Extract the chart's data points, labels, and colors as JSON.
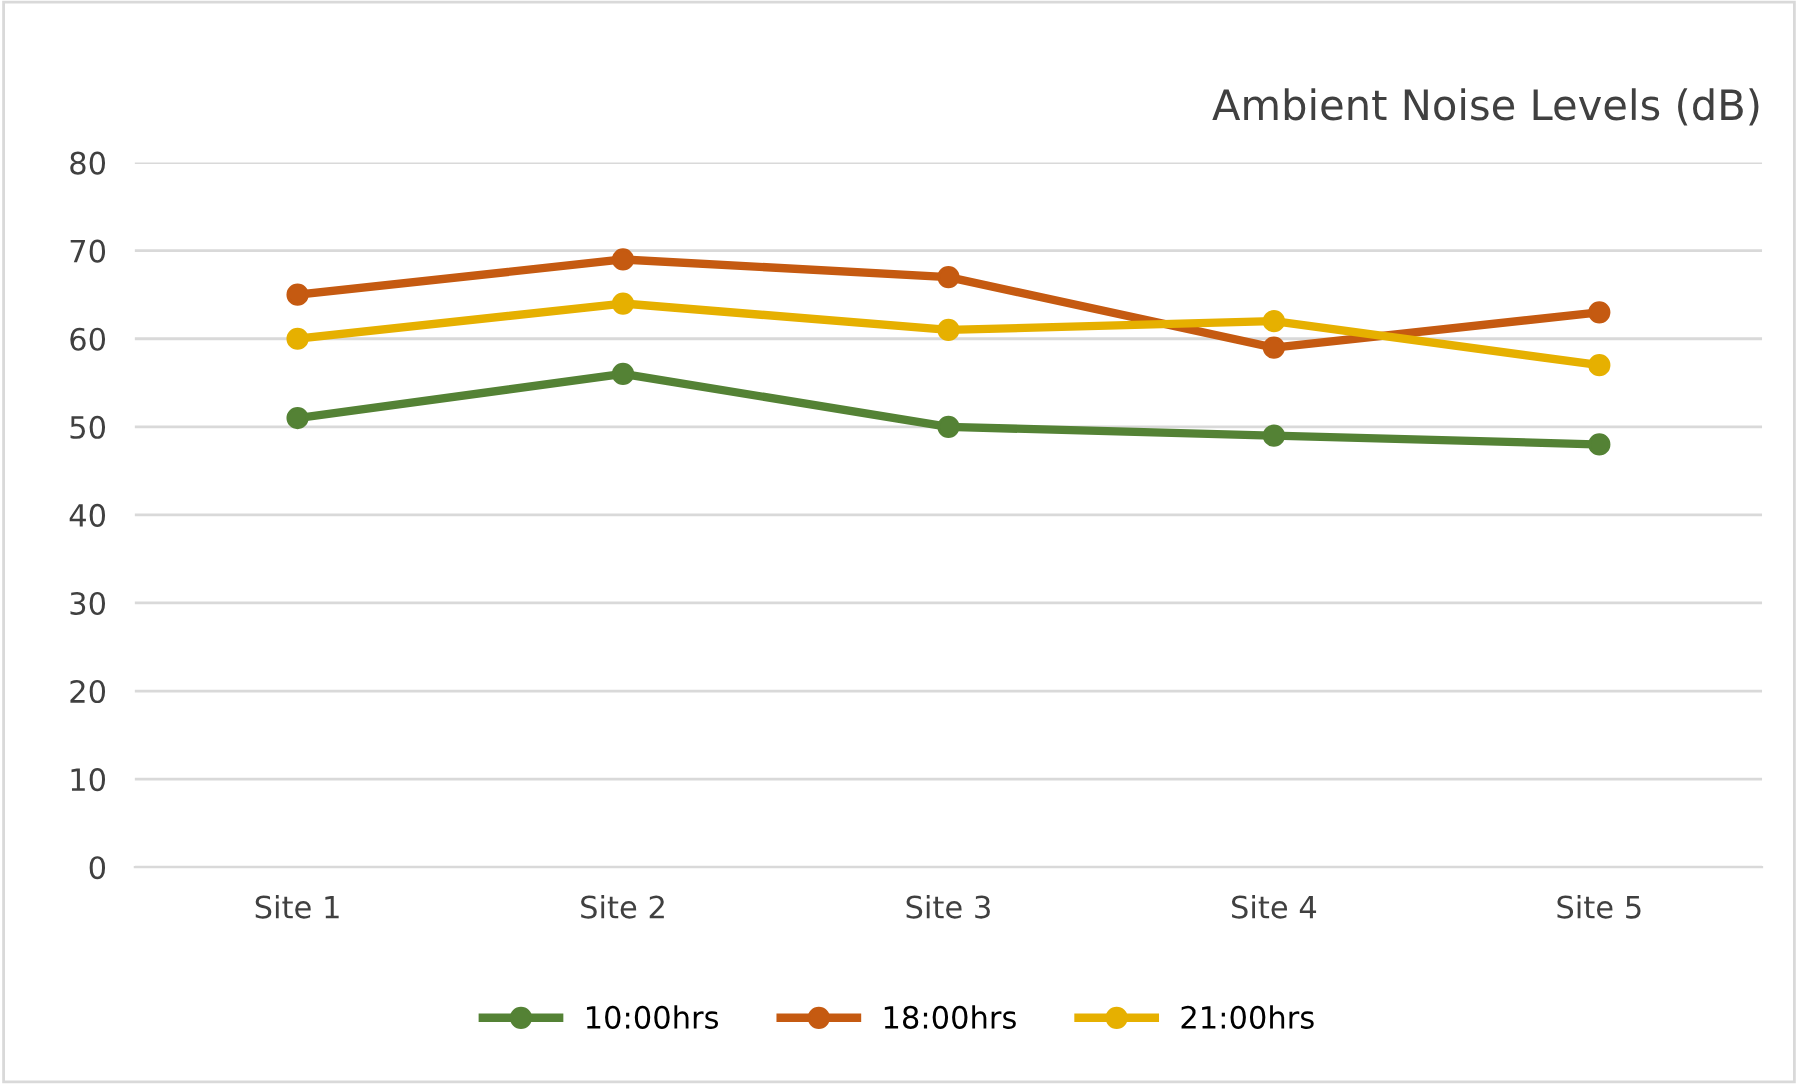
{
  "chart_data": {
    "type": "line",
    "title": "Ambient Noise Levels (dB)",
    "categories": [
      "Site 1",
      "Site 2",
      "Site 3",
      "Site 4",
      "Site 5"
    ],
    "series": [
      {
        "name": "10:00hrs",
        "color": "#548235",
        "values": [
          51,
          56,
          50,
          49,
          48
        ]
      },
      {
        "name": "18:00hrs",
        "color": "#c55a11",
        "values": [
          65,
          69,
          67,
          59,
          63
        ]
      },
      {
        "name": "21:00hrs",
        "color": "#e6b000",
        "values": [
          60,
          64,
          61,
          62,
          57
        ]
      }
    ],
    "ylim": [
      0,
      80
    ],
    "yticks": [
      0,
      10,
      20,
      30,
      40,
      50,
      60,
      70,
      80
    ],
    "grid": "y",
    "legend": "bottom",
    "marker": "circle",
    "line_style": "solid"
  }
}
